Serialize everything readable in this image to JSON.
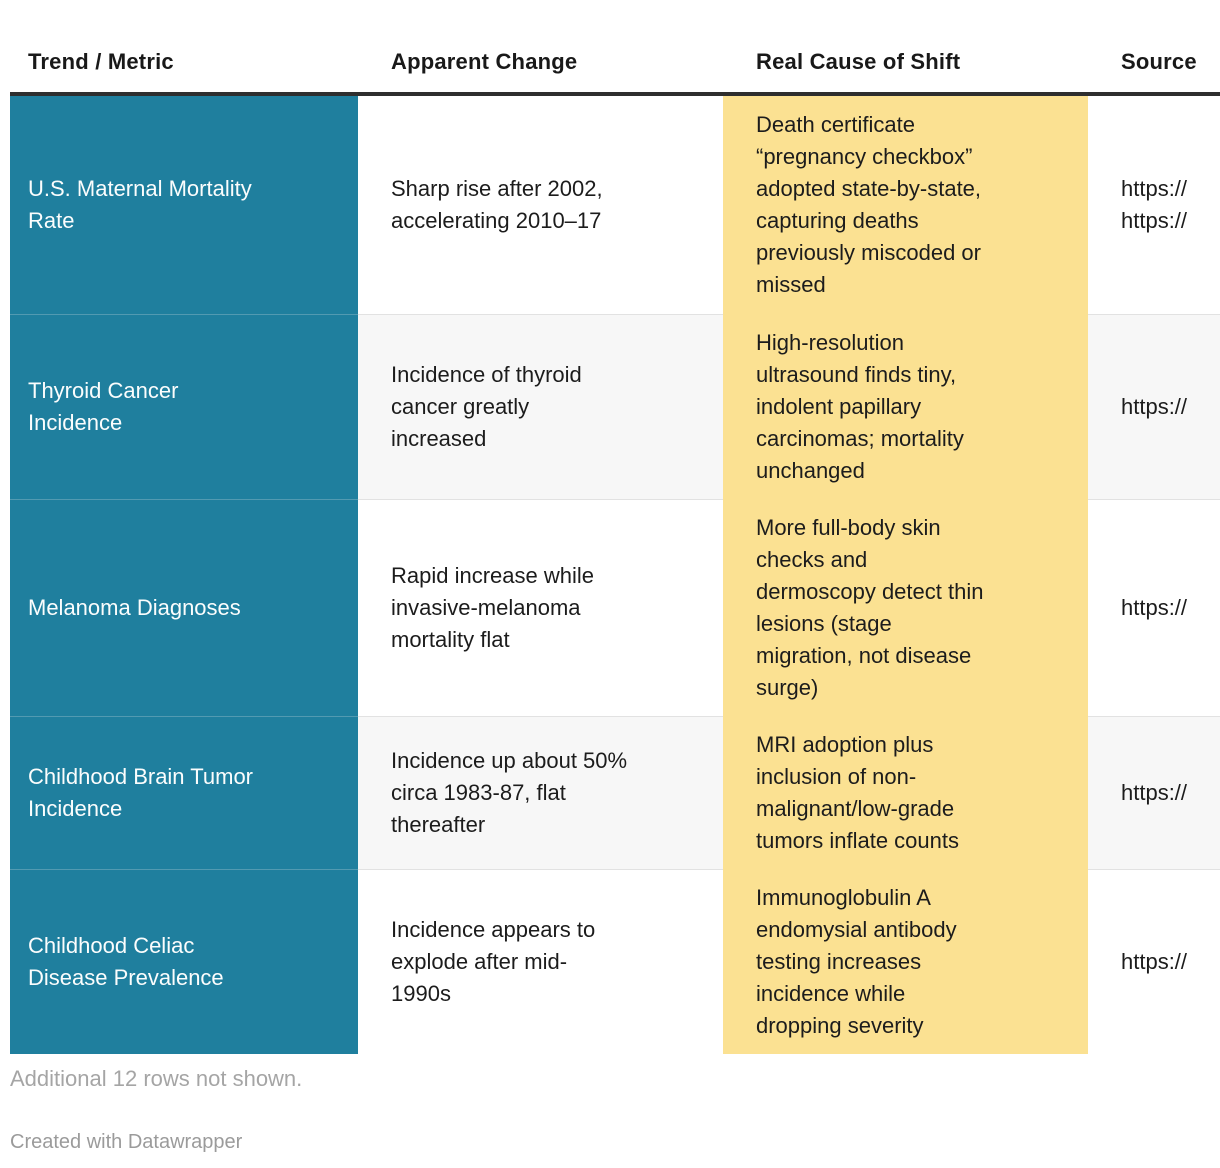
{
  "chart_data": {
    "type": "table",
    "title": "",
    "columns": [
      {
        "id": "metric",
        "label": "Trend / Metric"
      },
      {
        "id": "change",
        "label": "Apparent Change"
      },
      {
        "id": "cause",
        "label": "Real Cause of Shift"
      },
      {
        "id": "source",
        "label": "Source"
      }
    ],
    "rows": [
      {
        "metric": "U.S. Maternal Mortality\nRate",
        "change": "Sharp rise after 2002,\naccelerating 2010–17",
        "cause": "Death certificate\n“pregnancy checkbox”\nadopted state-by-state,\ncapturing deaths\npreviously miscoded or\nmissed",
        "source": "https://\nhttps://"
      },
      {
        "metric": "Thyroid Cancer\nIncidence",
        "change": "Incidence of thyroid\ncancer greatly\nincreased",
        "cause": "High-resolution\nultrasound finds tiny,\nindolent papillary\ncarcinomas; mortality\nunchanged",
        "source": "https://"
      },
      {
        "metric": "Melanoma Diagnoses",
        "change": "Rapid increase while\ninvasive-melanoma\nmortality flat",
        "cause": "More full-body skin\nchecks and\ndermoscopy detect thin\nlesions (stage\nmigration, not disease\nsurge)",
        "source": "https://"
      },
      {
        "metric": "Childhood Brain Tumor\nIncidence",
        "change": "Incidence up about 50%\ncirca 1983-87, flat\nthereafter",
        "cause": "MRI adoption plus\ninclusion of non-\nmalignant/low-grade\ntumors inflate counts",
        "source": "https://"
      },
      {
        "metric": "Childhood Celiac\nDisease Prevalence",
        "change": "Incidence appears to\nexplode after mid-\n1990s",
        "cause": "Immunoglobulin A\nendomysial antibody\ntesting increases\nincidence while\ndropping severity",
        "source": "https://"
      }
    ],
    "layout_hints": {
      "highlight_column": "cause",
      "colored_column": "metric",
      "row_striping": true
    }
  },
  "footer": {
    "note": "Additional 12 rows not shown.",
    "credit": "Created with Datawrapper"
  },
  "colors": {
    "metric_column_bg": "#1f7f9e",
    "cause_column_bg": "#fbe192",
    "header_rule": "#2e2e2e",
    "row_alt_bg": "#f7f7f7",
    "row_divider": "#e2e2e2",
    "text_dark": "#1c1c1c",
    "text_on_teal": "#fbfdfd",
    "note_gray": "#a5a5a5",
    "credit_gray": "#9b9b9b"
  }
}
